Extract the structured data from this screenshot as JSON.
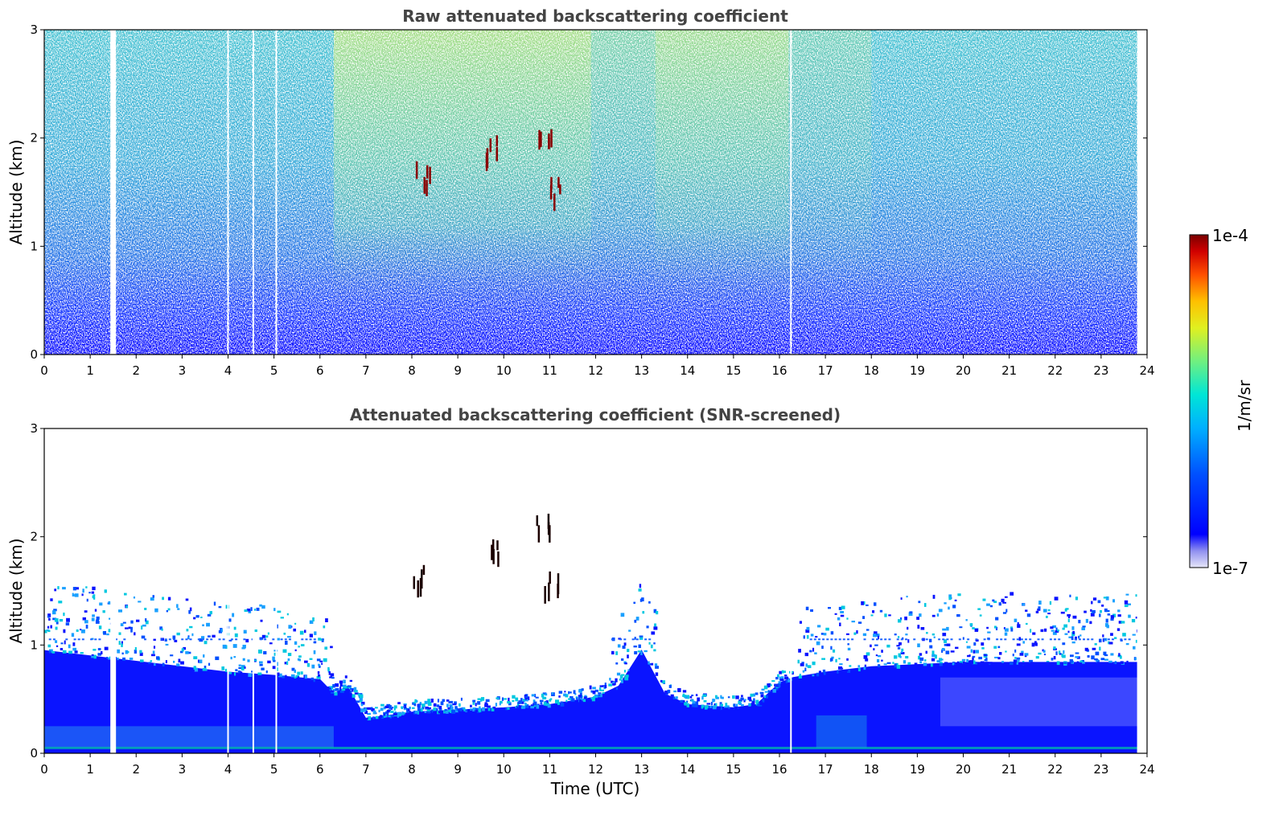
{
  "chart_data": [
    {
      "type": "heatmap",
      "title": "Raw attenuated backscattering coefficient",
      "xlabel": "",
      "ylabel": "Altitude (km)",
      "xlim": [
        0,
        24
      ],
      "ylim": [
        0,
        3
      ],
      "x_ticks": [
        "0",
        "1",
        "2",
        "3",
        "4",
        "5",
        "6",
        "7",
        "8",
        "9",
        "10",
        "11",
        "12",
        "13",
        "14",
        "15",
        "16",
        "17",
        "18",
        "19",
        "20",
        "21",
        "22",
        "23",
        "24"
      ],
      "y_ticks": [
        "0",
        "1",
        "2",
        "3"
      ],
      "data_gaps_hours": [
        1.5,
        4.0,
        4.55,
        5.05,
        16.25,
        23.8
      ],
      "features": [
        {
          "x": 8.2,
          "y": 1.6
        },
        {
          "x": 9.7,
          "y": 1.85
        },
        {
          "x": 10.85,
          "y": 2.0
        },
        {
          "x": 11.05,
          "y": 1.5
        }
      ]
    },
    {
      "type": "heatmap",
      "title": "Attenuated backscattering coefficient (SNR-screened)",
      "xlabel": "Time (UTC)",
      "ylabel": "Altitude (km)",
      "xlim": [
        0,
        24
      ],
      "ylim": [
        0,
        3
      ],
      "x_ticks": [
        "0",
        "1",
        "2",
        "3",
        "4",
        "5",
        "6",
        "7",
        "8",
        "9",
        "10",
        "11",
        "12",
        "13",
        "14",
        "15",
        "16",
        "17",
        "18",
        "19",
        "20",
        "21",
        "22",
        "23",
        "24"
      ],
      "y_ticks": [
        "0",
        "1",
        "2",
        "3"
      ],
      "layer_top_km": [
        [
          0,
          0.95
        ],
        [
          1,
          0.9
        ],
        [
          2,
          0.85
        ],
        [
          3,
          0.8
        ],
        [
          4,
          0.75
        ],
        [
          5,
          0.72
        ],
        [
          6,
          0.68
        ],
        [
          6.3,
          0.55
        ],
        [
          6.6,
          0.62
        ],
        [
          7,
          0.32
        ],
        [
          8,
          0.38
        ],
        [
          9,
          0.4
        ],
        [
          10,
          0.42
        ],
        [
          11,
          0.45
        ],
        [
          12,
          0.52
        ],
        [
          12.5,
          0.62
        ],
        [
          13,
          0.95
        ],
        [
          13.5,
          0.55
        ],
        [
          14,
          0.45
        ],
        [
          15,
          0.42
        ],
        [
          15.5,
          0.45
        ],
        [
          16,
          0.65
        ],
        [
          16.3,
          0.7
        ],
        [
          17,
          0.75
        ],
        [
          18,
          0.8
        ],
        [
          19,
          0.82
        ],
        [
          20,
          0.84
        ],
        [
          21,
          0.84
        ],
        [
          22,
          0.84
        ],
        [
          23,
          0.84
        ],
        [
          23.8,
          0.84
        ]
      ]
    }
  ],
  "colorbar": {
    "max_label": "1e-4",
    "min_label": "1e-7",
    "unit_label": "1/m/sr",
    "colormap": "jet",
    "colors": [
      "#e6e6f8",
      "#0000ff",
      "#00a0ff",
      "#00e6e6",
      "#b4f060",
      "#ffe800",
      "#ff6000",
      "#e00000",
      "#7a0000"
    ]
  }
}
